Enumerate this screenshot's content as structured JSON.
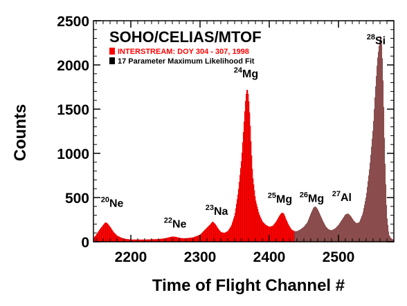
{
  "chart_data": {
    "type": "bar",
    "title": "SOHO/CELIAS/MTOF",
    "xlabel": "Time of Flight Channel #",
    "ylabel": "Counts",
    "xlim": [
      2146,
      2580
    ],
    "ylim": [
      0,
      2500
    ],
    "xticks": [
      2200,
      2300,
      2400,
      2500
    ],
    "yticks": [
      0,
      500,
      1000,
      1500,
      2000,
      2500
    ],
    "legend_placement": "top-left",
    "series": [
      {
        "name": "INTERSTREAM: DOY 304 - 307, 1998",
        "color": "#ff0000",
        "style": "filled-histogram"
      },
      {
        "name": "17 Parameter Maximum Likelihood Fit",
        "color": "#000000",
        "style": "bars"
      }
    ],
    "bins": {
      "x": [
        2146,
        2150,
        2155,
        2160,
        2163,
        2166,
        2170,
        2175,
        2180,
        2185,
        2190,
        2200,
        2210,
        2220,
        2230,
        2240,
        2250,
        2255,
        2260,
        2265,
        2270,
        2275,
        2280,
        2290,
        2300,
        2305,
        2310,
        2315,
        2318,
        2322,
        2326,
        2330,
        2335,
        2340,
        2345,
        2350,
        2355,
        2360,
        2363,
        2366,
        2368,
        2370,
        2372,
        2374,
        2376,
        2380,
        2385,
        2390,
        2395,
        2400,
        2405,
        2410,
        2415,
        2418,
        2421,
        2424,
        2428,
        2432,
        2436,
        2440,
        2445,
        2450,
        2455,
        2460,
        2464,
        2467,
        2470,
        2474,
        2478,
        2482,
        2486,
        2490,
        2495,
        2500,
        2505,
        2510,
        2514,
        2518,
        2522,
        2526,
        2530,
        2535,
        2540,
        2545,
        2550,
        2553,
        2556,
        2559,
        2561,
        2563,
        2565,
        2567,
        2570,
        2573,
        2576,
        2580
      ],
      "values": [
        40,
        80,
        140,
        190,
        220,
        210,
        170,
        110,
        70,
        50,
        35,
        25,
        25,
        25,
        28,
        30,
        40,
        50,
        60,
        55,
        45,
        40,
        40,
        50,
        80,
        120,
        160,
        200,
        230,
        200,
        150,
        110,
        100,
        120,
        180,
        300,
        560,
        950,
        1300,
        1650,
        1740,
        1650,
        1400,
        1050,
        750,
        480,
        320,
        230,
        190,
        170,
        180,
        230,
        300,
        330,
        320,
        260,
        190,
        140,
        120,
        120,
        140,
        170,
        220,
        320,
        390,
        400,
        370,
        300,
        230,
        170,
        140,
        130,
        150,
        190,
        250,
        310,
        320,
        290,
        240,
        210,
        220,
        320,
        520,
        850,
        1300,
        1700,
        2050,
        2250,
        2350,
        2200,
        1700,
        1000,
        300,
        80,
        40,
        20
      ]
    },
    "red_until_x": 2436,
    "peak_labels": [
      {
        "mass": "20",
        "element": "Ne",
        "x": 2171,
        "y": 395
      },
      {
        "mass": "22",
        "element": "Ne",
        "x": 2262,
        "y": 160
      },
      {
        "mass": "23",
        "element": "Na",
        "x": 2322,
        "y": 305
      },
      {
        "mass": "24",
        "element": "Mg",
        "x": 2363,
        "y": 1860
      },
      {
        "mass": "25",
        "element": "Mg",
        "x": 2412,
        "y": 440
      },
      {
        "mass": "26",
        "element": "Mg",
        "x": 2458,
        "y": 450
      },
      {
        "mass": "27",
        "element": "Al",
        "x": 2505,
        "y": 460
      },
      {
        "mass": "28",
        "element": "Si",
        "x": 2555,
        "y": 2235
      }
    ]
  }
}
